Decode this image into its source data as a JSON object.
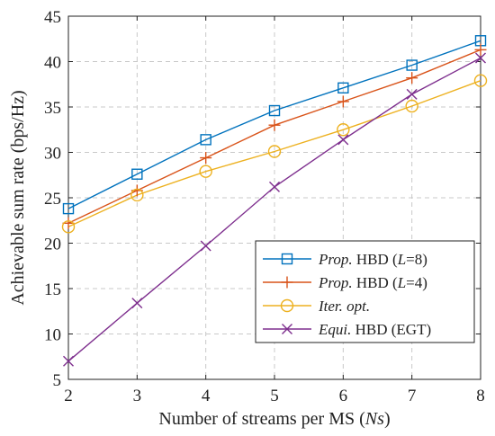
{
  "chart_data": {
    "type": "line",
    "xlabel": {
      "prefix": "Number of streams per MS (",
      "var": "N",
      "sub": "s",
      "suffix": ")"
    },
    "ylabel": "Achievable sum rate (bps/Hz)",
    "xlim": [
      2,
      8
    ],
    "ylim": [
      5,
      45
    ],
    "x_ticks": [
      2,
      3,
      4,
      5,
      6,
      7,
      8
    ],
    "y_ticks": [
      5,
      10,
      15,
      20,
      25,
      30,
      35,
      40,
      45
    ],
    "grid": true,
    "legend_position": "bottom-right",
    "x": [
      2,
      3,
      4,
      5,
      6,
      7,
      8
    ],
    "series": [
      {
        "key": "s1",
        "marker": "square",
        "color": "#0072BD",
        "label": {
          "it": "Prop.",
          "rest": " HBD (",
          "it2": "L",
          "tail": "=8)"
        },
        "values": [
          23.8,
          27.6,
          31.4,
          34.6,
          37.1,
          39.6,
          42.3
        ]
      },
      {
        "key": "s2",
        "marker": "plus",
        "color": "#D95319",
        "label": {
          "it": "Prop.",
          "rest": " HBD (",
          "it2": "L",
          "tail": "=4)"
        },
        "values": [
          22.2,
          25.8,
          29.4,
          33.0,
          35.6,
          38.2,
          41.3
        ]
      },
      {
        "key": "s3",
        "marker": "circle",
        "color": "#EDB120",
        "label": {
          "it": "Iter. opt.",
          "rest": "",
          "it2": "",
          "tail": ""
        },
        "values": [
          21.8,
          25.3,
          27.9,
          30.1,
          32.5,
          35.1,
          37.9
        ]
      },
      {
        "key": "s4",
        "marker": "x",
        "color": "#7E2F8E",
        "label": {
          "it": "Equi.",
          "rest": " HBD (EGT)",
          "it2": "",
          "tail": ""
        },
        "values": [
          7.0,
          13.4,
          19.7,
          26.2,
          31.4,
          36.4,
          40.4
        ]
      }
    ]
  }
}
